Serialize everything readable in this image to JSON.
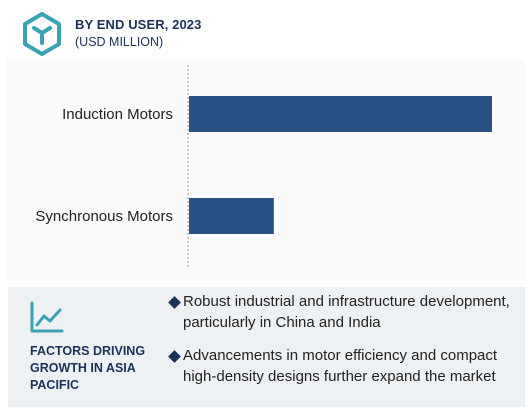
{
  "header": {
    "title": "BY END USER, 2023",
    "subtitle": "(USD MILLION)",
    "logo_icon": "hexagon-cube-icon"
  },
  "colors": {
    "bar": "#2a5185",
    "accent": "#1c3156",
    "logo": "#3aa3b3",
    "panel": "#eef1f4"
  },
  "chart_data": {
    "type": "bar",
    "orientation": "horizontal",
    "categories": [
      "Induction Motors",
      "Synchronous Motors"
    ],
    "values": [
      100,
      28
    ],
    "title": "",
    "xlabel": "",
    "ylabel": "",
    "xlim": [
      0,
      100
    ],
    "grid": false,
    "legend": "none"
  },
  "factors": {
    "icon": "trend-line-icon",
    "title": "FACTORS DRIVING GROWTH IN ASIA PACIFIC",
    "bullets": [
      "Robust industrial and infrastructure development, particularly in China and India",
      "Advancements in motor efficiency and compact high-density designs further expand the market"
    ]
  }
}
